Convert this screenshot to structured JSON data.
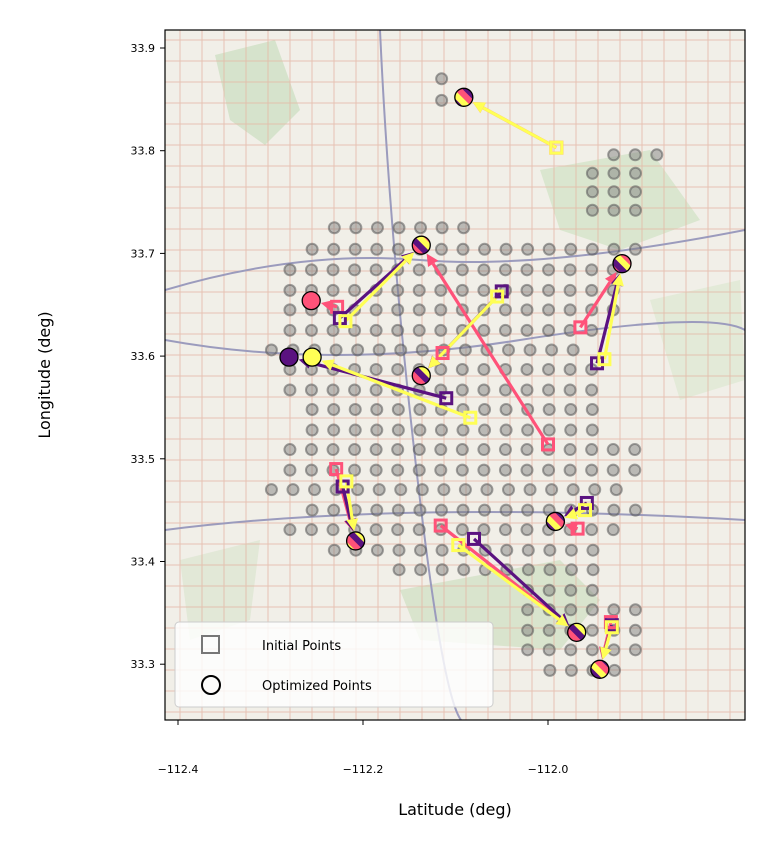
{
  "chart_data": {
    "type": "scatter",
    "title": "",
    "xlabel": "Latitude (deg)",
    "ylabel": "Longitude (deg)",
    "xlim": [
      -112.414,
      -111.787
    ],
    "ylim": [
      33.245,
      33.917
    ],
    "xticks": [
      -112.4,
      -112.2,
      -112.0
    ],
    "xtick_labels": [
      "−112.4",
      "−112.2",
      "−112.0"
    ],
    "yticks": [
      33.3,
      33.4,
      33.5,
      33.6,
      33.7,
      33.8,
      33.9
    ],
    "ytick_labels": [
      "33.3",
      "33.4",
      "33.5",
      "33.6",
      "33.7",
      "33.8",
      "33.9"
    ],
    "legend": {
      "placement": "lower-left",
      "entries": [
        "Initial Points",
        "Optimized Points"
      ]
    },
    "colors": {
      "pink": "#ff5279",
      "purple": "#5a1280",
      "yellow": "#ffff55",
      "grid_point": "#808080"
    },
    "candidate_grid": {
      "lon_step": 0.0233,
      "rows": [
        [
          33.87,
          -112.115,
          -112.115
        ],
        [
          33.849,
          -112.115,
          -112.091
        ],
        [
          33.796,
          -111.929,
          -111.882
        ],
        [
          33.778,
          -111.952,
          -111.905
        ],
        [
          33.76,
          -111.952,
          -111.905
        ],
        [
          33.742,
          -111.952,
          -111.905
        ],
        [
          33.725,
          -112.231,
          -112.068
        ],
        [
          33.704,
          -112.255,
          -111.905
        ],
        [
          33.684,
          -112.279,
          -111.929
        ],
        [
          33.664,
          -112.279,
          -111.929
        ],
        [
          33.645,
          -112.279,
          -111.929
        ],
        [
          33.625,
          -112.279,
          -111.952
        ],
        [
          33.606,
          -112.299,
          -111.952
        ],
        [
          33.587,
          -112.279,
          -111.952
        ],
        [
          33.567,
          -112.279,
          -111.952
        ],
        [
          33.548,
          -112.255,
          -111.929
        ],
        [
          33.528,
          -112.255,
          -111.929
        ],
        [
          33.509,
          -112.279,
          -111.905
        ],
        [
          33.489,
          -112.279,
          -111.905
        ],
        [
          33.47,
          -112.299,
          -111.905
        ],
        [
          33.45,
          -112.255,
          -111.905
        ],
        [
          33.431,
          -112.279,
          -111.929
        ],
        [
          33.411,
          -112.231,
          -111.929
        ],
        [
          33.392,
          -112.161,
          -111.929
        ],
        [
          33.372,
          -112.022,
          -111.929
        ],
        [
          33.353,
          -112.022,
          -111.905
        ],
        [
          33.333,
          -112.022,
          -111.905
        ],
        [
          33.314,
          -112.022,
          -111.905
        ],
        [
          33.294,
          -111.998,
          -111.905
        ]
      ]
    },
    "series": [
      {
        "name": "pink",
        "moves": [
          {
            "initial": [
              -111.991,
              33.803
            ],
            "optimized": [
              -112.091,
              33.852
            ]
          },
          {
            "initial": [
              -112.0,
              33.514
            ],
            "optimized": [
              -112.137,
              33.708
            ]
          },
          {
            "initial": [
              -112.228,
              33.648
            ],
            "optimized": [
              -112.256,
              33.654
            ]
          },
          {
            "initial": [
              -112.114,
              33.603
            ],
            "optimized": [
              -112.137,
              33.581
            ]
          },
          {
            "initial": [
              -111.965,
              33.628
            ],
            "optimized": [
              -111.92,
              33.69
            ]
          },
          {
            "initial": [
              -112.229,
              33.49
            ],
            "optimized": [
              -112.208,
              33.42
            ]
          },
          {
            "initial": [
              -111.968,
              33.432
            ],
            "optimized": [
              -111.992,
              33.439
            ]
          },
          {
            "initial": [
              -112.116,
              33.435
            ],
            "optimized": [
              -111.969,
              33.331
            ]
          },
          {
            "initial": [
              -111.932,
              33.341
            ],
            "optimized": [
              -111.944,
              33.295
            ]
          }
        ]
      },
      {
        "name": "purple",
        "moves": [
          {
            "initial": [
              -112.225,
              33.637
            ],
            "optimized": [
              -112.137,
              33.708
            ]
          },
          {
            "initial": [
              -112.05,
              33.663
            ],
            "optimized": [
              -112.137,
              33.581
            ]
          },
          {
            "initial": [
              -112.11,
              33.559
            ],
            "optimized": [
              -112.28,
              33.599
            ]
          },
          {
            "initial": [
              -111.947,
              33.593
            ],
            "optimized": [
              -111.92,
              33.69
            ]
          },
          {
            "initial": [
              -112.222,
              33.473
            ],
            "optimized": [
              -112.208,
              33.42
            ]
          },
          {
            "initial": [
              -111.958,
              33.457
            ],
            "optimized": [
              -111.992,
              33.439
            ]
          },
          {
            "initial": [
              -112.08,
              33.422
            ],
            "optimized": [
              -111.969,
              33.331
            ]
          },
          {
            "initial": [
              -111.931,
              33.338
            ],
            "optimized": [
              -111.944,
              33.295
            ]
          }
        ]
      },
      {
        "name": "yellow",
        "moves": [
          {
            "initial": [
              -111.991,
              33.803
            ],
            "optimized": [
              -112.091,
              33.852
            ]
          },
          {
            "initial": [
              -112.219,
              33.634
            ],
            "optimized": [
              -112.137,
              33.708
            ]
          },
          {
            "initial": [
              -112.055,
              33.658
            ],
            "optimized": [
              -112.137,
              33.581
            ]
          },
          {
            "initial": [
              -112.084,
              33.54
            ],
            "optimized": [
              -112.255,
              33.599
            ]
          },
          {
            "initial": [
              -111.939,
              33.597
            ],
            "optimized": [
              -111.92,
              33.69
            ]
          },
          {
            "initial": [
              -112.218,
              33.478
            ],
            "optimized": [
              -112.208,
              33.42
            ]
          },
          {
            "initial": [
              -111.96,
              33.45
            ],
            "optimized": [
              -111.992,
              33.439
            ]
          },
          {
            "initial": [
              -112.097,
              33.416
            ],
            "optimized": [
              -111.969,
              33.331
            ]
          },
          {
            "initial": [
              -111.931,
              33.336
            ],
            "optimized": [
              -111.944,
              33.295
            ]
          }
        ]
      }
    ],
    "shared_optimized": [
      [
        -112.091,
        33.852
      ],
      [
        -112.137,
        33.708
      ],
      [
        -112.137,
        33.581
      ],
      [
        -111.92,
        33.69
      ],
      [
        -112.208,
        33.42
      ],
      [
        -111.992,
        33.439
      ],
      [
        -111.969,
        33.331
      ],
      [
        -111.944,
        33.295
      ]
    ],
    "single_optimized": [
      {
        "series": "pink",
        "point": [
          -112.256,
          33.654
        ]
      },
      {
        "series": "purple",
        "point": [
          -112.28,
          33.599
        ]
      },
      {
        "series": "yellow",
        "point": [
          -112.255,
          33.599
        ]
      }
    ]
  }
}
